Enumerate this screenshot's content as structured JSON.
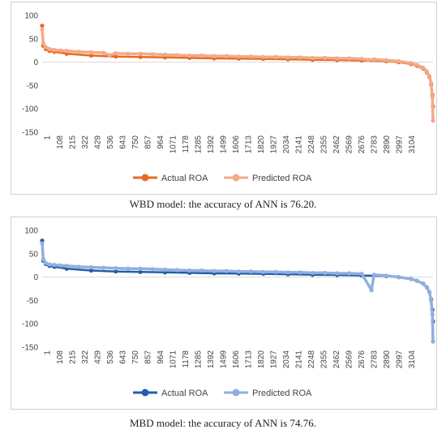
{
  "captions": {
    "wbd": "WBD model: the accuracy of ANN is 76.20.",
    "mbd": "MBD model: the accuracy of ANN is 74.76."
  },
  "chart_data": [
    {
      "type": "line",
      "model": "WBD",
      "ylim": [
        -150,
        100
      ],
      "yticks": [
        100,
        50,
        0,
        -50,
        -100,
        -150
      ],
      "xlim": [
        1,
        3180
      ],
      "x_tick_labels": [
        "1",
        "108",
        "215",
        "322",
        "429",
        "536",
        "643",
        "750",
        "857",
        "964",
        "1071",
        "1178",
        "1285",
        "1392",
        "1499",
        "1606",
        "1713",
        "1820",
        "1927",
        "2034",
        "2141",
        "2248",
        "2355",
        "2462",
        "2569",
        "2676",
        "2783",
        "2890",
        "2997",
        "3104"
      ],
      "legend_position": "bottom",
      "series": [
        {
          "name": "Actual ROA",
          "color": "#e46c22",
          "x": [
            1,
            10,
            30,
            60,
            100,
            200,
            400,
            600,
            800,
            1000,
            1200,
            1400,
            1600,
            1800,
            2000,
            2200,
            2400,
            2600,
            2800,
            2900,
            3000,
            3050,
            3100,
            3130,
            3150,
            3165,
            3175,
            3180
          ],
          "y": [
            78,
            35,
            28,
            24,
            22,
            18,
            14,
            12,
            11,
            10,
            9,
            8,
            7.5,
            7,
            6,
            5,
            4.5,
            3.5,
            2,
            0,
            -4,
            -8,
            -14,
            -22,
            -32,
            -48,
            -70,
            -95
          ]
        },
        {
          "name": "Predicted ROA",
          "color": "#f4a98a",
          "x": [
            1,
            10,
            30,
            60,
            100,
            150,
            200,
            300,
            400,
            500,
            550,
            600,
            700,
            800,
            900,
            1000,
            1100,
            1200,
            1300,
            1400,
            1500,
            1600,
            1700,
            1800,
            1900,
            2000,
            2100,
            2200,
            2300,
            2400,
            2500,
            2600,
            2650,
            2700,
            2800,
            2900,
            3000,
            3050,
            3100,
            3130,
            3150,
            3165,
            3175,
            3180
          ],
          "y": [
            70,
            40,
            32,
            28,
            26,
            25,
            24,
            22,
            21,
            20,
            15,
            19,
            18,
            18,
            17,
            16,
            15,
            14,
            14,
            13,
            13,
            12,
            12,
            11,
            11,
            10,
            10,
            9,
            9,
            8,
            8,
            7,
            5,
            6,
            4,
            2,
            -2,
            -6,
            -12,
            -20,
            -30,
            -45,
            -75,
            -125
          ]
        }
      ]
    },
    {
      "type": "line",
      "model": "MBD",
      "ylim": [
        -150,
        100
      ],
      "yticks": [
        100,
        50,
        0,
        -50,
        -100,
        -150
      ],
      "xlim": [
        1,
        3180
      ],
      "x_tick_labels": [
        "1",
        "108",
        "215",
        "322",
        "429",
        "536",
        "643",
        "750",
        "857",
        "964",
        "1071",
        "1178",
        "1285",
        "1392",
        "1499",
        "1606",
        "1713",
        "1820",
        "1927",
        "2034",
        "2141",
        "2248",
        "2355",
        "2462",
        "2569",
        "2676",
        "2783",
        "2890",
        "2997",
        "3104"
      ],
      "legend_position": "bottom",
      "series": [
        {
          "name": "Actual ROA",
          "color": "#1f5fa8",
          "x": [
            1,
            10,
            30,
            60,
            100,
            200,
            400,
            600,
            800,
            1000,
            1200,
            1400,
            1600,
            1800,
            2000,
            2200,
            2400,
            2600,
            2800,
            2900,
            3000,
            3050,
            3100,
            3130,
            3150,
            3165,
            3175,
            3180
          ],
          "y": [
            78,
            35,
            28,
            24,
            22,
            18,
            14,
            12,
            11,
            10,
            9,
            8,
            7.5,
            7,
            6,
            5,
            4.5,
            3.5,
            2,
            0,
            -4,
            -8,
            -14,
            -22,
            -32,
            -48,
            -70,
            -95
          ]
        },
        {
          "name": "Predicted ROA",
          "color": "#93aede",
          "x": [
            1,
            10,
            30,
            60,
            100,
            150,
            200,
            300,
            400,
            500,
            600,
            700,
            800,
            900,
            1000,
            1100,
            1200,
            1300,
            1400,
            1500,
            1600,
            1700,
            1800,
            1900,
            2000,
            2100,
            2200,
            2300,
            2400,
            2500,
            2600,
            2680,
            2700,
            2800,
            2900,
            3000,
            3050,
            3100,
            3130,
            3150,
            3165,
            3175,
            3180
          ],
          "y": [
            72,
            38,
            30,
            27,
            26,
            25,
            24,
            22,
            21,
            20,
            19,
            18,
            18,
            17,
            16,
            15,
            14,
            14,
            13,
            13,
            12,
            12,
            11,
            11,
            10,
            10,
            9,
            9,
            8,
            8,
            7,
            -28,
            5,
            3,
            0,
            -4,
            -8,
            -14,
            -22,
            -32,
            -50,
            -80,
            -138
          ]
        }
      ]
    }
  ]
}
